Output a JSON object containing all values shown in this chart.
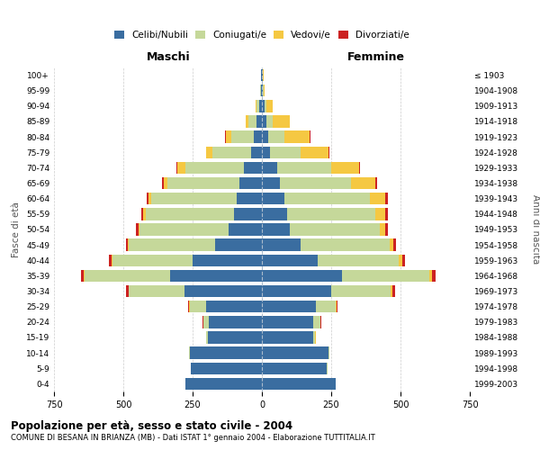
{
  "age_groups": [
    "0-4",
    "5-9",
    "10-14",
    "15-19",
    "20-24",
    "25-29",
    "30-34",
    "35-39",
    "40-44",
    "45-49",
    "50-54",
    "55-59",
    "60-64",
    "65-69",
    "70-74",
    "75-79",
    "80-84",
    "85-89",
    "90-94",
    "95-99",
    "100+"
  ],
  "birth_years": [
    "1999-2003",
    "1994-1998",
    "1989-1993",
    "1984-1988",
    "1979-1983",
    "1974-1978",
    "1969-1973",
    "1964-1968",
    "1959-1963",
    "1954-1958",
    "1949-1953",
    "1944-1948",
    "1939-1943",
    "1934-1938",
    "1929-1933",
    "1924-1928",
    "1919-1923",
    "1914-1918",
    "1909-1913",
    "1904-1908",
    "≤ 1903"
  ],
  "maschi": {
    "celibi": [
      275,
      255,
      260,
      195,
      190,
      200,
      280,
      330,
      250,
      170,
      120,
      100,
      90,
      80,
      65,
      40,
      30,
      18,
      10,
      3,
      2
    ],
    "coniugati": [
      2,
      2,
      3,
      5,
      20,
      60,
      200,
      310,
      290,
      310,
      320,
      320,
      310,
      260,
      210,
      140,
      80,
      30,
      8,
      2,
      1
    ],
    "vedovi": [
      0,
      0,
      0,
      0,
      1,
      2,
      2,
      2,
      3,
      3,
      5,
      8,
      10,
      15,
      30,
      20,
      20,
      10,
      5,
      0,
      0
    ],
    "divorziati": [
      0,
      0,
      0,
      1,
      2,
      3,
      8,
      10,
      10,
      8,
      8,
      8,
      5,
      5,
      3,
      2,
      2,
      1,
      0,
      0,
      0
    ]
  },
  "femmine": {
    "nubili": [
      265,
      235,
      240,
      185,
      185,
      195,
      250,
      290,
      200,
      140,
      100,
      90,
      80,
      65,
      55,
      30,
      22,
      15,
      10,
      3,
      2
    ],
    "coniugate": [
      1,
      2,
      3,
      8,
      25,
      70,
      215,
      315,
      295,
      320,
      325,
      320,
      310,
      255,
      195,
      110,
      60,
      25,
      5,
      2,
      1
    ],
    "vedove": [
      0,
      0,
      0,
      1,
      2,
      3,
      5,
      8,
      10,
      15,
      20,
      35,
      55,
      90,
      100,
      100,
      90,
      60,
      25,
      5,
      2
    ],
    "divorziate": [
      0,
      0,
      0,
      1,
      2,
      5,
      10,
      12,
      12,
      10,
      10,
      10,
      8,
      5,
      4,
      3,
      2,
      1,
      0,
      0,
      0
    ]
  },
  "colors": {
    "celibi": "#3a6da0",
    "coniugati": "#c5d89a",
    "vedovi": "#f5c842",
    "divorziati": "#cc2222"
  },
  "title1": "Popolazione per età, sesso e stato civile - 2004",
  "title2": "COMUNE DI BESANA IN BRIANZA (MB) - Dati ISTAT 1° gennaio 2004 - Elaborazione TUTTITALIA.IT",
  "xlim": 750,
  "bg_color": "#ffffff",
  "grid_color": "#cccccc"
}
